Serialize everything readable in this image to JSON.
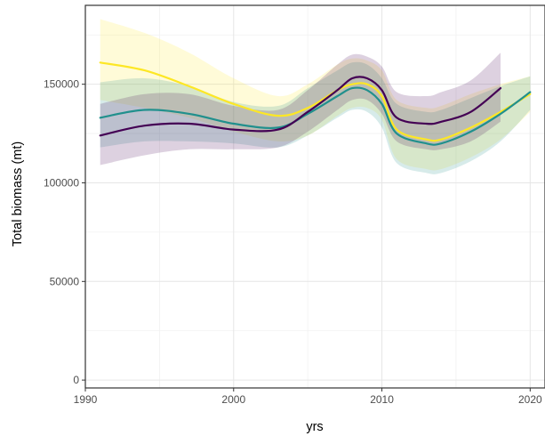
{
  "chart_data": {
    "type": "line",
    "xlabel": "yrs",
    "ylabel": "Total biomass (mt)",
    "xlim": [
      1990,
      2021
    ],
    "ylim": [
      -4000,
      190000
    ],
    "x_ticks": [
      1990,
      2000,
      2010,
      2020
    ],
    "y_ticks": [
      0,
      50000,
      100000,
      150000
    ],
    "x_tick_labels": [
      "1990",
      "2000",
      "2010",
      "2020"
    ],
    "y_tick_labels": [
      "0",
      "50000",
      "100000",
      "150000"
    ],
    "grid": true,
    "legend": "none",
    "series": [
      {
        "color": "#fde725",
        "x": [
          1991,
          1994,
          1997,
          2000,
          2003,
          2005,
          2007,
          2008,
          2009,
          2010,
          2011,
          2013,
          2014,
          2016,
          2018,
          2020
        ],
        "values": [
          161000,
          157000,
          149000,
          140000,
          134000,
          138000,
          147000,
          150000,
          150000,
          144000,
          127000,
          122000,
          122000,
          128000,
          136000,
          145000
        ],
        "lower": [
          142000,
          138000,
          133000,
          126000,
          121000,
          124000,
          134000,
          138000,
          138000,
          132000,
          112000,
          107000,
          107000,
          113000,
          122000,
          136000
        ],
        "upper": [
          183000,
          176000,
          166000,
          153000,
          144000,
          150000,
          160000,
          163000,
          162000,
          157000,
          142000,
          138000,
          139000,
          145000,
          150000,
          154000
        ]
      },
      {
        "color": "#21908d",
        "x": [
          1991,
          1994,
          1997,
          2000,
          2003,
          2005,
          2007,
          2008,
          2009,
          2010,
          2011,
          2013,
          2014,
          2016,
          2018,
          2020
        ],
        "values": [
          133000,
          137000,
          135000,
          130000,
          128000,
          135000,
          144000,
          148000,
          147000,
          140000,
          125000,
          120000,
          120000,
          126000,
          135000,
          146000
        ],
        "lower": [
          118000,
          121000,
          121000,
          120000,
          118000,
          124000,
          133000,
          137000,
          136000,
          128000,
          110000,
          105000,
          105000,
          111000,
          121000,
          137000
        ],
        "upper": [
          151000,
          153000,
          149000,
          141000,
          139000,
          148000,
          157000,
          161000,
          160000,
          153000,
          140000,
          136000,
          137000,
          143000,
          149000,
          154000
        ]
      },
      {
        "color": "#440154",
        "x": [
          1991,
          1994,
          1997,
          2000,
          2003,
          2005,
          2007,
          2008,
          2009,
          2010,
          2011,
          2013,
          2014,
          2016,
          2018
        ],
        "values": [
          124000,
          129000,
          130000,
          127000,
          127000,
          136000,
          147000,
          153000,
          153000,
          147000,
          133000,
          130000,
          131000,
          136000,
          148000
        ],
        "lower": [
          109000,
          114000,
          117000,
          117000,
          118000,
          126000,
          137000,
          142000,
          142000,
          135000,
          121000,
          117000,
          117000,
          121000,
          131000
        ],
        "upper": [
          140000,
          145000,
          145000,
          139000,
          137000,
          147000,
          160000,
          165000,
          164000,
          159000,
          146000,
          144000,
          146000,
          152000,
          166000
        ]
      }
    ]
  }
}
